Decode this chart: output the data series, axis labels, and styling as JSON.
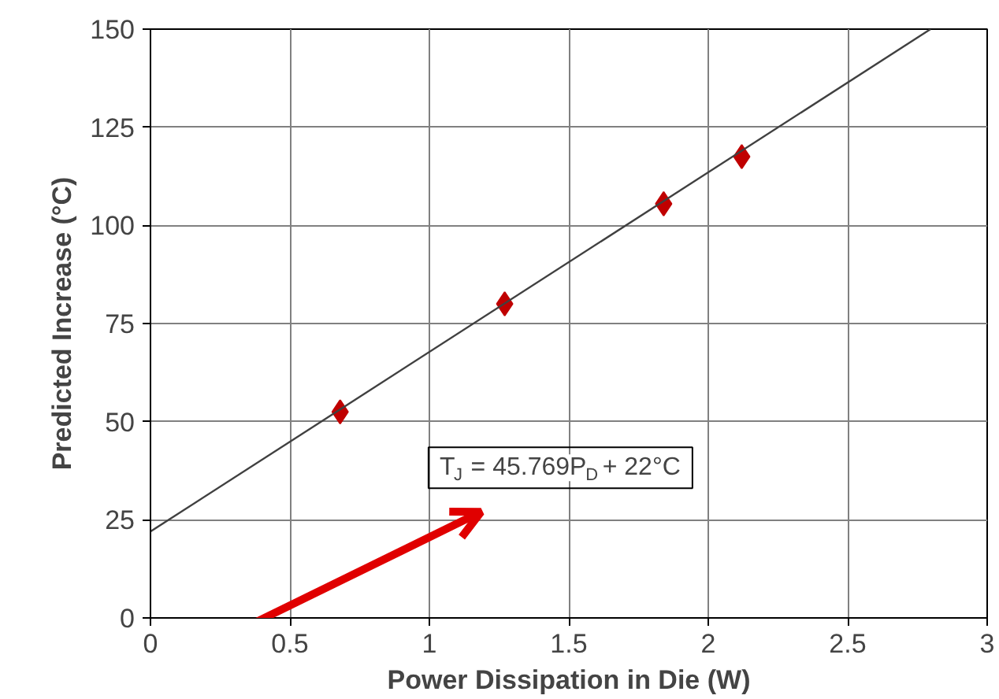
{
  "chart_data": {
    "type": "scatter",
    "xlabel": "Power Dissipation in Die (W)",
    "ylabel": "Predicted Increase (°C)",
    "x": [
      0.68,
      1.27,
      1.84,
      2.12
    ],
    "series": [
      {
        "color": "#c00000",
        "values": [
          52.5,
          80,
          105.5,
          117.5
        ],
        "marker": "diamond"
      },
      {
        "type": "line",
        "color": "#404040",
        "x": [
          0,
          2.797
        ],
        "values": [
          22,
          150
        ]
      }
    ],
    "xlim": [
      0,
      3
    ],
    "xticks": [
      0,
      0.5,
      1,
      1.5,
      2,
      2.5,
      3
    ],
    "ylim": [
      0,
      150
    ],
    "yticks": [
      0,
      25,
      50,
      75,
      100,
      125,
      150
    ],
    "grid": true,
    "annotations": [
      "T$_{J}$ = 45.769P$_{D}$ + 22°C"
    ]
  }
}
